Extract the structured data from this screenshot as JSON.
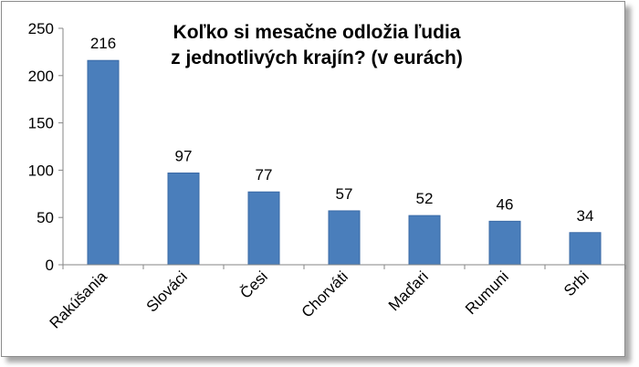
{
  "chart_data": {
    "type": "bar",
    "title_lines": [
      "Koľko si mesačne odložia ľudia",
      "z jednotlivých krajín? (v eurách)"
    ],
    "categories": [
      "Rakúšania",
      "Slováci",
      "Česi",
      "Chorváti",
      "Maďari",
      "Rumuni",
      "Srbi"
    ],
    "values": [
      216,
      97,
      77,
      57,
      52,
      46,
      34
    ],
    "ylim": [
      0,
      250
    ],
    "yticks": [
      "0",
      "50",
      "100",
      "150",
      "200",
      "250"
    ],
    "grid": false,
    "legend": "none",
    "bar_color": "#4a7ebb",
    "bar_edge_color": "#3a6aa6"
  }
}
